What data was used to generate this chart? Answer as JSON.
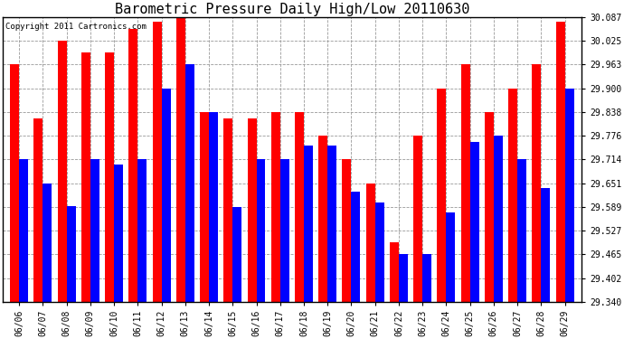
{
  "title": "Barometric Pressure Daily High/Low 20110630",
  "copyright": "Copyright 2011 Cartronics.com",
  "dates": [
    "06/06",
    "06/07",
    "06/08",
    "06/09",
    "06/10",
    "06/11",
    "06/12",
    "06/13",
    "06/14",
    "06/15",
    "06/16",
    "06/17",
    "06/18",
    "06/19",
    "06/20",
    "06/21",
    "06/22",
    "06/23",
    "06/24",
    "06/25",
    "06/26",
    "06/27",
    "06/28",
    "06/29"
  ],
  "highs": [
    29.963,
    29.82,
    30.025,
    29.994,
    29.994,
    30.056,
    30.075,
    30.087,
    29.838,
    29.82,
    29.82,
    29.838,
    29.838,
    29.776,
    29.714,
    29.651,
    29.496,
    29.776,
    29.9,
    29.963,
    29.838,
    29.9,
    29.963,
    30.075
  ],
  "lows": [
    29.714,
    29.651,
    29.59,
    29.714,
    29.7,
    29.714,
    29.9,
    29.963,
    29.838,
    29.589,
    29.714,
    29.714,
    29.75,
    29.75,
    29.63,
    29.6,
    29.465,
    29.465,
    29.575,
    29.76,
    29.776,
    29.714,
    29.638,
    29.9
  ],
  "high_color": "#ff0000",
  "low_color": "#0000ff",
  "bg_color": "#ffffff",
  "grid_color": "#999999",
  "ymin": 29.34,
  "ymax": 30.087,
  "yticks": [
    29.34,
    29.402,
    29.465,
    29.527,
    29.589,
    29.651,
    29.714,
    29.776,
    29.838,
    29.9,
    29.963,
    30.025,
    30.087
  ],
  "bar_width": 0.38,
  "title_fontsize": 11,
  "tick_fontsize": 7,
  "copyright_fontsize": 6.5,
  "fig_width": 6.9,
  "fig_height": 3.75,
  "dpi": 100
}
